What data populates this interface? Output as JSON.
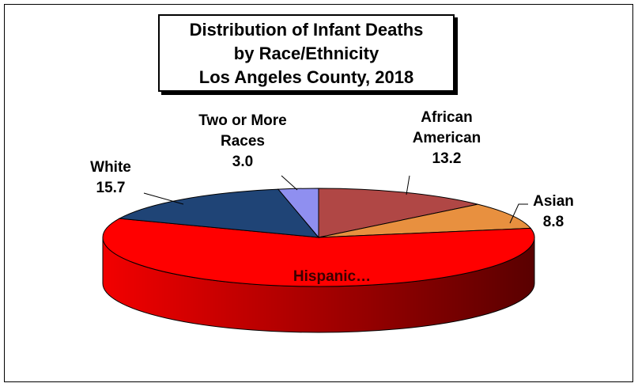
{
  "chart_data": {
    "type": "pie3d",
    "title": [
      "Distribution of Infant Deaths",
      "by Race/Ethnicity",
      "Los Angeles County, 2018"
    ],
    "categories": [
      "African American",
      "Asian",
      "Hispanic…",
      "White",
      "Two or More Races"
    ],
    "values": [
      13.2,
      8.8,
      59.3,
      15.7,
      3.0
    ],
    "value_labels": [
      "13.2",
      "8.8",
      null,
      "15.7",
      "3.0"
    ],
    "colors": [
      "#b04745",
      "#e8903f",
      "#ff0000",
      "#1f4476",
      "#8f8ff0"
    ]
  }
}
